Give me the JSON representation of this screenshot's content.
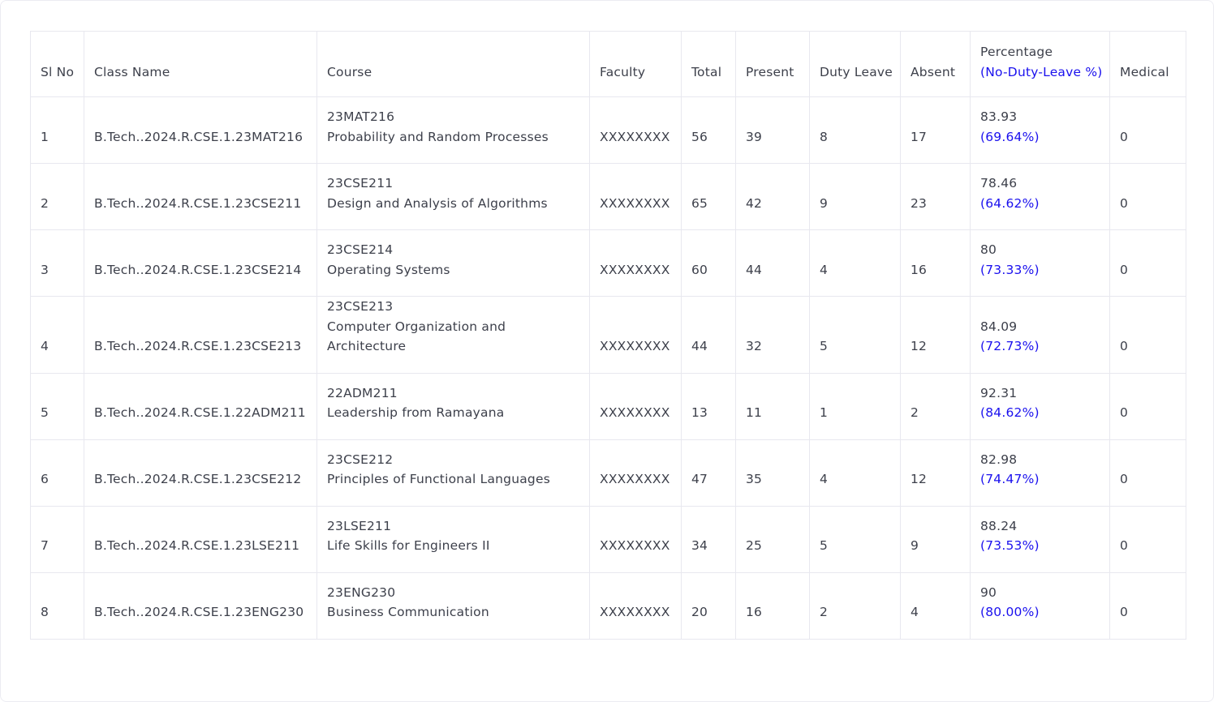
{
  "headers": {
    "sl_no": "Sl No",
    "class_name": "Class Name",
    "course": "Course",
    "faculty": "Faculty",
    "total": "Total",
    "present": "Present",
    "duty_leave": "Duty Leave",
    "absent": "Absent",
    "percentage": "Percentage",
    "percentage_sub": "(No-Duty-Leave %)",
    "medical": "Medical"
  },
  "colors": {
    "accent": "#1a10ee",
    "text": "#3d404b",
    "border": "#e8e8ef"
  },
  "rows": [
    {
      "sl": "1",
      "class": "B.Tech..2024.R.CSE.1.23MAT216",
      "code": "23MAT216",
      "name": "Probability and Random Processes",
      "faculty": "XXXXXXXX",
      "total": "56",
      "present": "39",
      "duty": "8",
      "absent": "17",
      "pct": "83.93",
      "pct_nodl": "(69.64%)",
      "medical": "0"
    },
    {
      "sl": "2",
      "class": "B.Tech..2024.R.CSE.1.23CSE211",
      "code": "23CSE211",
      "name": "Design and Analysis of Algorithms",
      "faculty": "XXXXXXXX",
      "total": "65",
      "present": "42",
      "duty": "9",
      "absent": "23",
      "pct": "78.46",
      "pct_nodl": "(64.62%)",
      "medical": "0"
    },
    {
      "sl": "3",
      "class": "B.Tech..2024.R.CSE.1.23CSE214",
      "code": "23CSE214",
      "name": "Operating Systems",
      "faculty": "XXXXXXXX",
      "total": "60",
      "present": "44",
      "duty": "4",
      "absent": "16",
      "pct": "80",
      "pct_nodl": "(73.33%)",
      "medical": "0"
    },
    {
      "sl": "4",
      "class": "B.Tech..2024.R.CSE.1.23CSE213",
      "code": "23CSE213",
      "name": "Computer Organization and Architecture",
      "faculty": "XXXXXXXX",
      "total": "44",
      "present": "32",
      "duty": "5",
      "absent": "12",
      "pct": "84.09",
      "pct_nodl": "(72.73%)",
      "medical": "0"
    },
    {
      "sl": "5",
      "class": "B.Tech..2024.R.CSE.1.22ADM211",
      "code": "22ADM211",
      "name": "Leadership from Ramayana",
      "faculty": "XXXXXXXX",
      "total": "13",
      "present": "11",
      "duty": "1",
      "absent": "2",
      "pct": "92.31",
      "pct_nodl": "(84.62%)",
      "medical": "0"
    },
    {
      "sl": "6",
      "class": "B.Tech..2024.R.CSE.1.23CSE212",
      "code": "23CSE212",
      "name": "Principles of Functional Languages",
      "faculty": "XXXXXXXX",
      "total": "47",
      "present": "35",
      "duty": "4",
      "absent": "12",
      "pct": "82.98",
      "pct_nodl": "(74.47%)",
      "medical": "0"
    },
    {
      "sl": "7",
      "class": "B.Tech..2024.R.CSE.1.23LSE211",
      "code": "23LSE211",
      "name": "Life Skills for Engineers II",
      "faculty": "XXXXXXXX",
      "total": "34",
      "present": "25",
      "duty": "5",
      "absent": "9",
      "pct": "88.24",
      "pct_nodl": "(73.53%)",
      "medical": "0"
    },
    {
      "sl": "8",
      "class": "B.Tech..2024.R.CSE.1.23ENG230",
      "code": "23ENG230",
      "name": "Business Communication",
      "faculty": "XXXXXXXX",
      "total": "20",
      "present": "16",
      "duty": "2",
      "absent": "4",
      "pct": "90",
      "pct_nodl": "(80.00%)",
      "medical": "0"
    }
  ]
}
